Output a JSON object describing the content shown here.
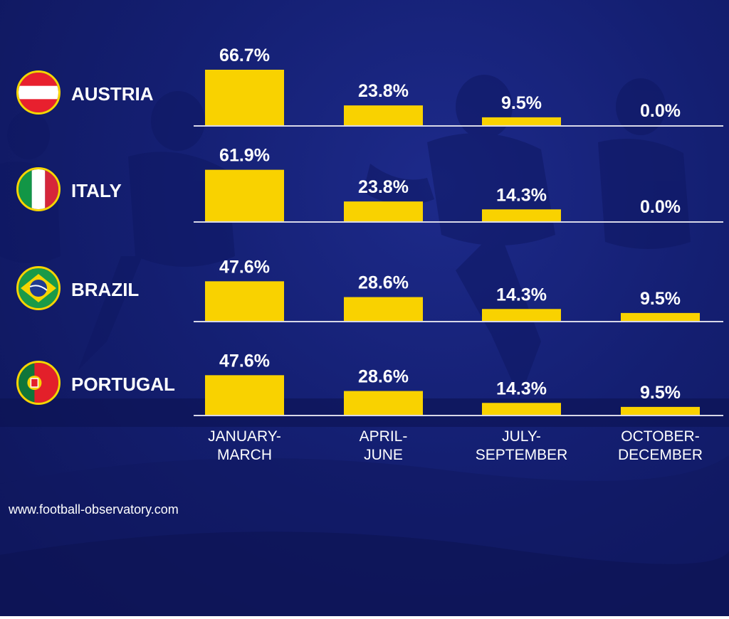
{
  "colors": {
    "bar": "#f9d200",
    "baseline": "#d8d8e8",
    "background": "#141f72"
  },
  "chart_data": {
    "type": "bar",
    "categories": [
      "JANUARY-MARCH",
      "APRIL-JUNE",
      "JULY-SEPTEMBER",
      "OCTOBER-DECEMBER"
    ],
    "category_lines": [
      [
        "JANUARY-",
        "MARCH"
      ],
      [
        "APRIL-",
        "JUNE"
      ],
      [
        "JULY-",
        "SEPTEMBER"
      ],
      [
        "OCTOBER-",
        "DECEMBER"
      ]
    ],
    "series": [
      {
        "name": "AUSTRIA",
        "flag": "austria-flag-icon",
        "values": [
          66.7,
          23.8,
          9.5,
          0.0
        ],
        "labels": [
          "66.7%",
          "23.8%",
          "9.5%",
          "0.0%"
        ]
      },
      {
        "name": "ITALY",
        "flag": "italy-flag-icon",
        "values": [
          61.9,
          23.8,
          14.3,
          0.0
        ],
        "labels": [
          "61.9%",
          "23.8%",
          "14.3%",
          "0.0%"
        ]
      },
      {
        "name": "BRAZIL",
        "flag": "brazil-flag-icon",
        "values": [
          47.6,
          28.6,
          14.3,
          9.5
        ],
        "labels": [
          "47.6%",
          "28.6%",
          "14.3%",
          "9.5%"
        ]
      },
      {
        "name": "PORTUGAL",
        "flag": "portugal-flag-icon",
        "values": [
          47.6,
          28.6,
          14.3,
          9.5
        ],
        "labels": [
          "47.6%",
          "28.6%",
          "14.3%",
          "9.5%"
        ]
      }
    ],
    "ylim": [
      0,
      66.7
    ],
    "grid": false
  },
  "footer": {
    "source": "www.football-observatory.com"
  }
}
